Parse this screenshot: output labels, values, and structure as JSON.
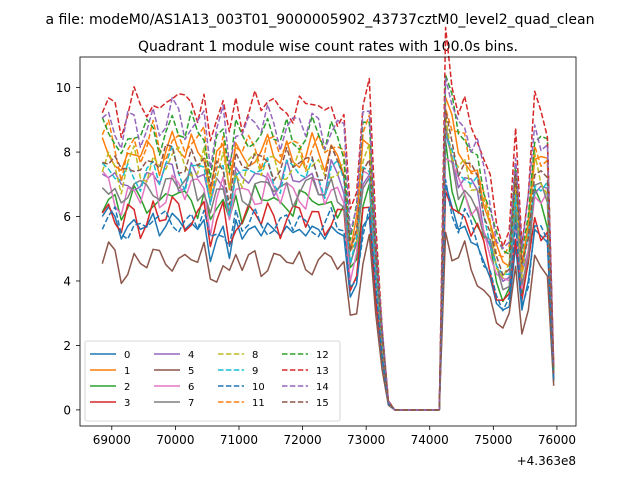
{
  "figure": {
    "suptitle": "a file: modeM0/AS1A13_003T01_9000005902_43737cztM0_level2_quad_clean",
    "title": "Quadrant 1 module wise count rates with 100.0s bins."
  },
  "chart_data": {
    "type": "line",
    "title": "Quadrant 1 module wise count rates with 100.0s bins.",
    "xlabel": "",
    "ylabel": "",
    "x_offset_label": "+4.363e8",
    "x_tick_labels": [
      "69000",
      "70000",
      "71000",
      "72000",
      "73000",
      "74000",
      "75000",
      "76000"
    ],
    "y_tick_labels": [
      "0",
      "2",
      "4",
      "6",
      "8",
      "10"
    ],
    "x_ticks": [
      69000,
      70000,
      71000,
      72000,
      73000,
      74000,
      75000,
      76000
    ],
    "y_ticks": [
      0,
      2,
      4,
      6,
      8,
      10
    ],
    "xlim": [
      68500,
      76300
    ],
    "ylim": [
      -0.5,
      10.95
    ],
    "grid": false,
    "legend_placement": "lower-left",
    "legend_columns": 4,
    "colors": [
      "#1f77b4",
      "#ff7f0e",
      "#2ca02c",
      "#d62728",
      "#9467bd",
      "#8c564b",
      "#e377c2",
      "#7f7f7f",
      "#bcbd22",
      "#17becf",
      "#1f77b4",
      "#ff7f0e",
      "#2ca02c",
      "#d62728",
      "#9467bd",
      "#8c564b"
    ],
    "dashed": [
      false,
      false,
      false,
      false,
      false,
      false,
      false,
      false,
      true,
      true,
      true,
      true,
      true,
      true,
      true,
      true
    ],
    "base": {
      "x": [
        68850,
        68950,
        69050,
        69150,
        69250,
        69350,
        69450,
        69550,
        69650,
        69750,
        69850,
        69950,
        70050,
        70150,
        70250,
        70350,
        70450,
        70550,
        70650,
        70750,
        70850,
        70950,
        71050,
        71150,
        71250,
        71350,
        71450,
        71550,
        71650,
        71750,
        71850,
        71950,
        72050,
        72150,
        72250,
        72350,
        72450,
        72550,
        72650,
        72750,
        72850,
        72950,
        73050,
        73150,
        73250,
        73350,
        73450,
        73550,
        73650,
        73750,
        73850,
        73950,
        74050,
        74150,
        74250,
        74350,
        74450,
        74550,
        74650,
        74750,
        74850,
        74950,
        75050,
        75150,
        75250,
        75350,
        75450,
        75550,
        75650,
        75750,
        75850,
        75950
      ],
      "profile": [
        1.0,
        1.02,
        0.98,
        0.9,
        0.97,
        1.0,
        0.95,
        0.98,
        1.02,
        0.96,
        0.99,
        1.03,
        1.0,
        0.97,
        1.01,
        0.98,
        1.02,
        0.85,
        0.95,
        1.0,
        0.86,
        1.0,
        0.95,
        0.98,
        1.0,
        0.96,
        1.01,
        0.98,
        0.95,
        1.0,
        0.97,
        0.99,
        0.96,
        1.0,
        0.98,
        0.94,
        1.0,
        0.97,
        0.95,
        0.62,
        0.7,
        1.0,
        1.05,
        0.6,
        0.28,
        0.03,
        0,
        0,
        0,
        0,
        0,
        0,
        0,
        0,
        1.18,
        1.06,
        0.98,
        1.0,
        0.92,
        0.9,
        0.8,
        0.72,
        0.6,
        0.55,
        0.58,
        0.9,
        0.55,
        0.7,
        0.98,
        0.94,
        0.92,
        0.15
      ]
    },
    "series": [
      {
        "name": "0",
        "level": 5.7,
        "values": [
          6.0,
          6.3,
          6.0,
          5.3,
          5.7,
          5.9,
          5.6,
          5.7,
          6.1,
          5.4,
          5.7,
          6.1,
          5.9,
          5.6,
          5.8,
          5.6,
          5.9,
          4.6,
          5.3,
          5.7,
          4.7,
          5.9,
          5.3,
          5.6,
          5.7,
          5.4,
          5.8,
          5.6,
          5.4,
          5.7,
          5.5,
          5.6,
          5.4,
          5.7,
          5.6,
          5.3,
          5.7,
          5.5,
          5.4,
          3.5,
          3.9,
          5.7,
          6.0,
          3.4,
          1.6,
          0.2,
          0,
          0,
          0,
          0,
          0,
          0,
          0,
          0,
          7.0,
          6.3,
          5.6,
          5.7,
          5.2,
          5.1,
          4.6,
          4.1,
          3.3,
          3.1,
          3.2,
          5.1,
          3.1,
          4.0,
          5.6,
          5.4,
          5.2,
          0.9
        ]
      },
      {
        "name": "1",
        "level": 8.1
      },
      {
        "name": "2",
        "level": 6.6
      },
      {
        "name": "3",
        "level": 6.1
      },
      {
        "name": "4",
        "level": 7.3
      },
      {
        "name": "5",
        "level": 4.7
      },
      {
        "name": "6",
        "level": 6.9
      },
      {
        "name": "7",
        "level": 7.0
      },
      {
        "name": "8",
        "level": 7.7
      },
      {
        "name": "9",
        "level": 7.5
      },
      {
        "name": "10",
        "level": 5.9
      },
      {
        "name": "11",
        "level": 8.3
      },
      {
        "name": "12",
        "level": 8.7
      },
      {
        "name": "13",
        "level": 9.6
      },
      {
        "name": "14",
        "level": 9.0
      },
      {
        "name": "15",
        "level": 7.8
      }
    ],
    "legend": [
      "0",
      "1",
      "2",
      "3",
      "4",
      "5",
      "6",
      "7",
      "8",
      "9",
      "10",
      "11",
      "12",
      "13",
      "14",
      "15"
    ]
  }
}
